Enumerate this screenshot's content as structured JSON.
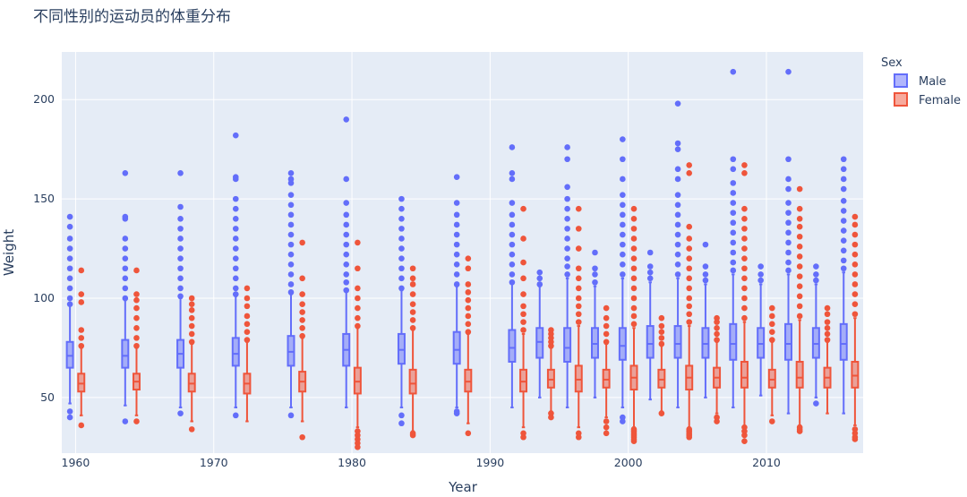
{
  "chart_data": {
    "type": "box",
    "title": "不同性别的运动员的体重分布",
    "xlabel": "Year",
    "ylabel": "Weight",
    "xlim": [
      1959,
      2017
    ],
    "ylim": [
      22,
      224
    ],
    "x_ticks": [
      1960,
      1970,
      1980,
      1990,
      2000,
      2010
    ],
    "y_ticks": [
      50,
      100,
      150,
      200
    ],
    "grid": true,
    "mode": "grouped",
    "legend": {
      "title": "Sex",
      "position": "top-right"
    },
    "series": [
      {
        "name": "Male",
        "color": "#636efa",
        "fill": "rgba(99,110,250,0.5)",
        "boxes": [
          {
            "x": 1960,
            "q1": 65,
            "median": 71,
            "q3": 78,
            "lowerfence": 47,
            "upperfence": 97,
            "outliers": [
              40,
              43,
              97,
              100,
              105,
              110,
              115,
              120,
              125,
              130,
              136,
              141
            ]
          },
          {
            "x": 1964,
            "q1": 65,
            "median": 71,
            "q3": 79,
            "lowerfence": 46,
            "upperfence": 99,
            "outliers": [
              38,
              100,
              105,
              110,
              115,
              120,
              125,
              130,
              140,
              141,
              163
            ]
          },
          {
            "x": 1968,
            "q1": 65,
            "median": 72,
            "q3": 79,
            "lowerfence": 45,
            "upperfence": 100,
            "outliers": [
              42,
              101,
              105,
              110,
              115,
              120,
              125,
              130,
              135,
              140,
              146,
              163
            ]
          },
          {
            "x": 1972,
            "q1": 66,
            "median": 72,
            "q3": 80,
            "lowerfence": 45,
            "upperfence": 101,
            "outliers": [
              41,
              102,
              105,
              110,
              115,
              120,
              125,
              130,
              135,
              140,
              145,
              150,
              160,
              161,
              182
            ]
          },
          {
            "x": 1976,
            "q1": 66,
            "median": 73,
            "q3": 81,
            "lowerfence": 45,
            "upperfence": 102,
            "outliers": [
              41,
              103,
              107,
              112,
              117,
              122,
              127,
              132,
              137,
              142,
              147,
              152,
              158,
              160,
              163
            ]
          },
          {
            "x": 1980,
            "q1": 66,
            "median": 74,
            "q3": 82,
            "lowerfence": 45,
            "upperfence": 104,
            "outliers": [
              104,
              108,
              112,
              117,
              122,
              127,
              132,
              137,
              142,
              148,
              160,
              190
            ]
          },
          {
            "x": 1984,
            "q1": 67,
            "median": 74,
            "q3": 82,
            "lowerfence": 45,
            "upperfence": 104,
            "outliers": [
              37,
              41,
              105,
              110,
              115,
              120,
              125,
              130,
              135,
              140,
              145,
              150
            ]
          },
          {
            "x": 1988,
            "q1": 67,
            "median": 74,
            "q3": 83,
            "lowerfence": 45,
            "upperfence": 106,
            "outliers": [
              42,
              43,
              107,
              112,
              117,
              122,
              127,
              132,
              137,
              142,
              148,
              161
            ]
          },
          {
            "x": 1992,
            "q1": 68,
            "median": 75,
            "q3": 84,
            "lowerfence": 45,
            "upperfence": 108,
            "outliers": [
              108,
              112,
              117,
              122,
              127,
              132,
              137,
              142,
              148,
              160,
              163,
              176
            ]
          },
          {
            "x": 1994,
            "q1": 70,
            "median": 78,
            "q3": 85,
            "lowerfence": 50,
            "upperfence": 106,
            "outliers": [
              107,
              110,
              113
            ]
          },
          {
            "x": 1996,
            "q1": 68,
            "median": 75,
            "q3": 85,
            "lowerfence": 45,
            "upperfence": 110,
            "outliers": [
              112,
              116,
              120,
              125,
              130,
              135,
              140,
              145,
              150,
              156,
              170,
              176
            ]
          },
          {
            "x": 1998,
            "q1": 70,
            "median": 77,
            "q3": 85,
            "lowerfence": 50,
            "upperfence": 106,
            "outliers": [
              108,
              112,
              115,
              123
            ]
          },
          {
            "x": 2000,
            "q1": 69,
            "median": 76,
            "q3": 85,
            "lowerfence": 45,
            "upperfence": 110,
            "outliers": [
              38,
              40,
              112,
              117,
              122,
              127,
              132,
              137,
              142,
              147,
              152,
              160,
              170,
              180
            ]
          },
          {
            "x": 2002,
            "q1": 70,
            "median": 77,
            "q3": 86,
            "lowerfence": 49,
            "upperfence": 108,
            "outliers": [
              110,
              113,
              116,
              123
            ]
          },
          {
            "x": 2004,
            "q1": 70,
            "median": 77,
            "q3": 86,
            "lowerfence": 45,
            "upperfence": 110,
            "outliers": [
              112,
              117,
              122,
              127,
              132,
              137,
              142,
              147,
              152,
              160,
              165,
              175,
              178,
              198
            ]
          },
          {
            "x": 2006,
            "q1": 70,
            "median": 77,
            "q3": 85,
            "lowerfence": 50,
            "upperfence": 107,
            "outliers": [
              109,
              112,
              116,
              127
            ]
          },
          {
            "x": 2008,
            "q1": 69,
            "median": 77,
            "q3": 87,
            "lowerfence": 45,
            "upperfence": 112,
            "outliers": [
              114,
              118,
              123,
              128,
              133,
              138,
              143,
              148,
              153,
              158,
              165,
              170,
              214
            ]
          },
          {
            "x": 2010,
            "q1": 70,
            "median": 77,
            "q3": 85,
            "lowerfence": 51,
            "upperfence": 107,
            "outliers": [
              109,
              112,
              116
            ]
          },
          {
            "x": 2012,
            "q1": 69,
            "median": 77,
            "q3": 87,
            "lowerfence": 42,
            "upperfence": 112,
            "outliers": [
              114,
              118,
              123,
              128,
              133,
              138,
              143,
              148,
              155,
              160,
              170,
              214
            ]
          },
          {
            "x": 2014,
            "q1": 70,
            "median": 77,
            "q3": 85,
            "lowerfence": 50,
            "upperfence": 107,
            "outliers": [
              47,
              109,
              112,
              116
            ]
          },
          {
            "x": 2016,
            "q1": 69,
            "median": 77,
            "q3": 87,
            "lowerfence": 42,
            "upperfence": 113,
            "outliers": [
              115,
              119,
              124,
              129,
              134,
              139,
              144,
              149,
              155,
              160,
              165,
              170
            ]
          }
        ]
      },
      {
        "name": "Female",
        "color": "#ef553b",
        "fill": "rgba(239,85,59,0.5)",
        "boxes": [
          {
            "x": 1960,
            "q1": 53,
            "median": 57,
            "q3": 62,
            "lowerfence": 41,
            "upperfence": 75,
            "outliers": [
              36,
              76,
              80,
              84,
              98,
              102,
              114
            ]
          },
          {
            "x": 1964,
            "q1": 54,
            "median": 58,
            "q3": 62,
            "lowerfence": 41,
            "upperfence": 75,
            "outliers": [
              38,
              76,
              80,
              85,
              90,
              95,
              99,
              102,
              114
            ]
          },
          {
            "x": 1968,
            "q1": 53,
            "median": 57,
            "q3": 62,
            "lowerfence": 38,
            "upperfence": 77,
            "outliers": [
              34,
              78,
              82,
              86,
              90,
              94,
              97,
              100
            ]
          },
          {
            "x": 1972,
            "q1": 52,
            "median": 57,
            "q3": 62,
            "lowerfence": 38,
            "upperfence": 78,
            "outliers": [
              79,
              83,
              87,
              91,
              96,
              100,
              105
            ]
          },
          {
            "x": 1976,
            "q1": 53,
            "median": 58,
            "q3": 63,
            "lowerfence": 38,
            "upperfence": 80,
            "outliers": [
              30,
              81,
              85,
              89,
              93,
              97,
              102,
              110,
              128
            ]
          },
          {
            "x": 1980,
            "q1": 52,
            "median": 58,
            "q3": 65,
            "lowerfence": 35,
            "upperfence": 85,
            "outliers": [
              25,
              27,
              29,
              31,
              33,
              86,
              90,
              95,
              100,
              105,
              115,
              128
            ]
          },
          {
            "x": 1984,
            "q1": 52,
            "median": 57,
            "q3": 64,
            "lowerfence": 33,
            "upperfence": 84,
            "outliers": [
              31,
              32,
              85,
              89,
              93,
              97,
              102,
              107,
              110,
              115
            ]
          },
          {
            "x": 1988,
            "q1": 53,
            "median": 58,
            "q3": 64,
            "lowerfence": 37,
            "upperfence": 82,
            "outliers": [
              32,
              83,
              87,
              91,
              95,
              99,
              103,
              107,
              115,
              120
            ]
          },
          {
            "x": 1992,
            "q1": 53,
            "median": 58,
            "q3": 64,
            "lowerfence": 35,
            "upperfence": 82,
            "outliers": [
              30,
              32,
              84,
              88,
              92,
              96,
              102,
              110,
              118,
              130,
              145
            ]
          },
          {
            "x": 1994,
            "q1": 55,
            "median": 59,
            "q3": 64,
            "lowerfence": 43,
            "upperfence": 75,
            "outliers": [
              40,
              42,
              76,
              78,
              80,
              82,
              84
            ]
          },
          {
            "x": 1996,
            "q1": 53,
            "median": 59,
            "q3": 66,
            "lowerfence": 35,
            "upperfence": 86,
            "outliers": [
              30,
              32,
              88,
              92,
              96,
              100,
              105,
              110,
              115,
              125,
              135,
              145
            ]
          },
          {
            "x": 1998,
            "q1": 55,
            "median": 59,
            "q3": 64,
            "lowerfence": 40,
            "upperfence": 77,
            "outliers": [
              32,
              35,
              38,
              78,
              82,
              86,
              90,
              95
            ]
          },
          {
            "x": 2000,
            "q1": 54,
            "median": 60,
            "q3": 66,
            "lowerfence": 35,
            "upperfence": 85,
            "outliers": [
              28,
              29,
              30,
              31,
              32,
              33,
              34,
              87,
              91,
              95,
              100,
              105,
              110,
              115,
              120,
              125,
              130,
              135,
              140,
              145
            ]
          },
          {
            "x": 2002,
            "q1": 55,
            "median": 59,
            "q3": 64,
            "lowerfence": 43,
            "upperfence": 76,
            "outliers": [
              42,
              77,
              80,
              83,
              86,
              90
            ]
          },
          {
            "x": 2004,
            "q1": 54,
            "median": 60,
            "q3": 66,
            "lowerfence": 35,
            "upperfence": 86,
            "outliers": [
              30,
              31,
              32,
              33,
              34,
              88,
              92,
              96,
              100,
              105,
              110,
              115,
              120,
              125,
              130,
              136,
              163,
              167
            ]
          },
          {
            "x": 2006,
            "q1": 55,
            "median": 60,
            "q3": 65,
            "lowerfence": 42,
            "upperfence": 78,
            "outliers": [
              38,
              40,
              79,
              82,
              85,
              88,
              90
            ]
          },
          {
            "x": 2008,
            "q1": 55,
            "median": 60,
            "q3": 68,
            "lowerfence": 35,
            "upperfence": 88,
            "outliers": [
              28,
              31,
              33,
              35,
              90,
              95,
              100,
              105,
              110,
              115,
              120,
              125,
              130,
              135,
              140,
              145,
              163,
              167
            ]
          },
          {
            "x": 2010,
            "q1": 55,
            "median": 59,
            "q3": 64,
            "lowerfence": 41,
            "upperfence": 78,
            "outliers": [
              38,
              79,
              83,
              87,
              91,
              95
            ]
          },
          {
            "x": 2012,
            "q1": 55,
            "median": 60,
            "q3": 68,
            "lowerfence": 36,
            "upperfence": 89,
            "outliers": [
              33,
              34,
              35,
              91,
              96,
              101,
              106,
              111,
              116,
              121,
              126,
              131,
              136,
              140,
              145,
              155
            ]
          },
          {
            "x": 2014,
            "q1": 55,
            "median": 60,
            "q3": 65,
            "lowerfence": 42,
            "upperfence": 78,
            "outliers": [
              79,
              82,
              85,
              88,
              92,
              95
            ]
          },
          {
            "x": 2016,
            "q1": 55,
            "median": 61,
            "q3": 68,
            "lowerfence": 36,
            "upperfence": 90,
            "outliers": [
              29,
              30,
              32,
              34,
              92,
              97,
              102,
              107,
              112,
              117,
              122,
              127,
              132,
              137,
              141
            ]
          }
        ]
      }
    ]
  }
}
